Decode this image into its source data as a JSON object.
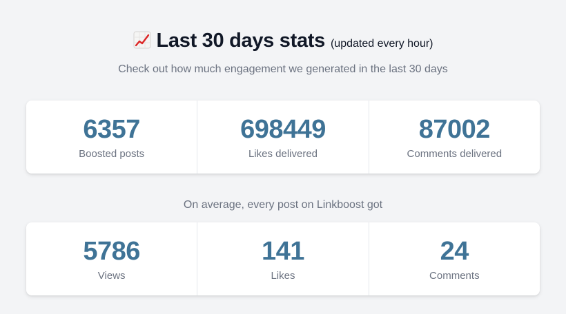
{
  "header": {
    "icon": "chart-increasing-icon",
    "title": "Last 30 days stats",
    "note": "(updated every hour)",
    "subtitle": "Check out how much engagement we generated in the last 30 days"
  },
  "totals": [
    {
      "value": "6357",
      "label": "Boosted posts"
    },
    {
      "value": "698449",
      "label": "Likes delivered"
    },
    {
      "value": "87002",
      "label": "Comments delivered"
    }
  ],
  "average": {
    "caption": "On average, every post on Linkboost got",
    "stats": [
      {
        "value": "5786",
        "label": "Views"
      },
      {
        "value": "141",
        "label": "Likes"
      },
      {
        "value": "24",
        "label": "Comments"
      }
    ]
  },
  "colors": {
    "accent": "#3f7396",
    "muted_text": "#6b7280",
    "background": "#f3f4f6"
  }
}
